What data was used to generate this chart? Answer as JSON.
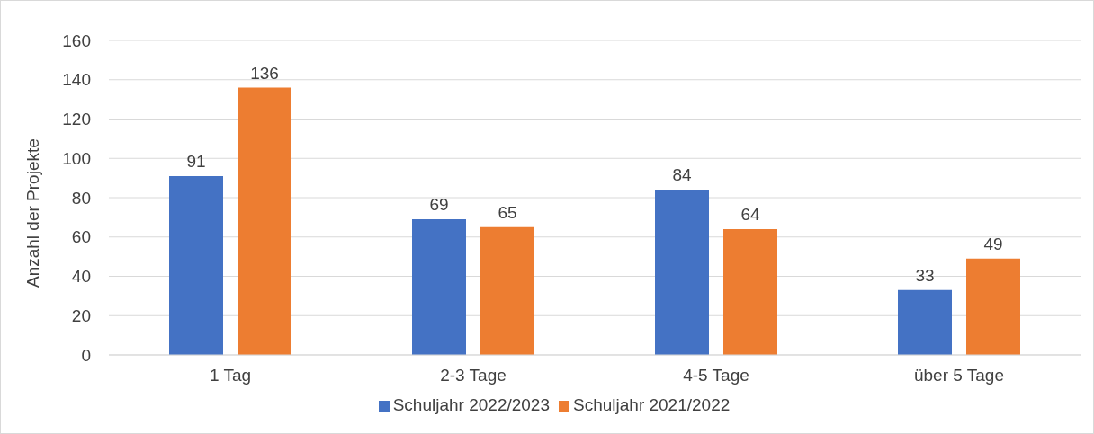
{
  "chart_data": {
    "type": "bar",
    "ylabel": "Anzahl der Projekte",
    "categories": [
      "1 Tag",
      "2-3 Tage",
      "4-5 Tage",
      "über 5 Tage"
    ],
    "series": [
      {
        "name": "Schuljahr 2022/2023",
        "color": "#4472c4",
        "values": [
          91,
          69,
          84,
          33
        ]
      },
      {
        "name": "Schuljahr 2021/2022",
        "color": "#ed7d31",
        "values": [
          136,
          65,
          64,
          49
        ]
      }
    ],
    "ylim": [
      0,
      160
    ],
    "yticks": [
      0,
      20,
      40,
      60,
      80,
      100,
      120,
      140,
      160
    ],
    "grid": "y",
    "legend": "bottom",
    "data_labels": true
  }
}
